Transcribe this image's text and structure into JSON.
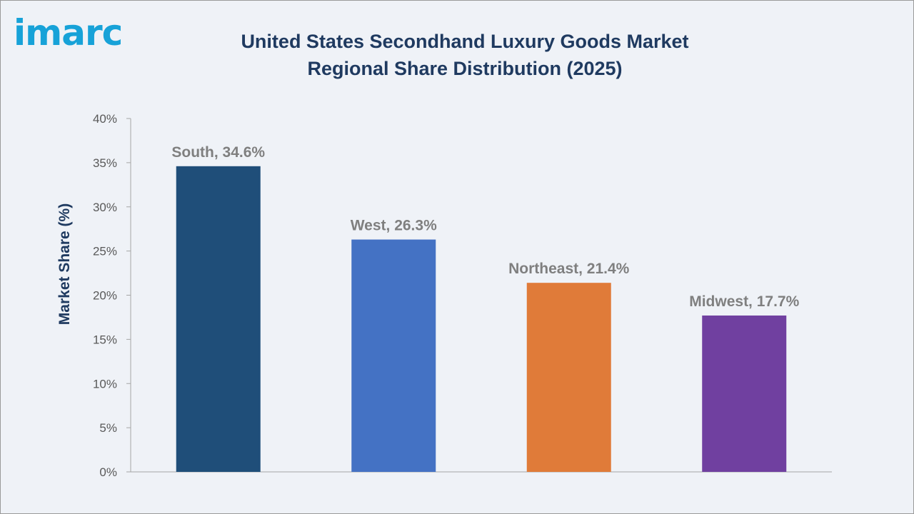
{
  "logo_text": "imarc",
  "chart_data": {
    "type": "bar",
    "title": "United States Secondhand Luxury Goods Market Regional Share Distribution (2025)",
    "xlabel": "",
    "ylabel": "Market Share (%)",
    "ylim": [
      0,
      40
    ],
    "yticks": [
      0,
      5,
      10,
      15,
      20,
      25,
      30,
      35,
      40
    ],
    "ytick_labels": [
      "0%",
      "5%",
      "10%",
      "15%",
      "20%",
      "25%",
      "30%",
      "35%",
      "40%"
    ],
    "categories": [
      "South",
      "West",
      "Northeast",
      "Midwest"
    ],
    "values": [
      34.6,
      26.3,
      21.4,
      17.7
    ],
    "data_labels": [
      "South, 34.6%",
      "West, 26.3%",
      "Northeast, 21.4%",
      "Midwest, 17.7%"
    ],
    "colors": [
      "#1f4e79",
      "#4472c4",
      "#e07b39",
      "#7040a0"
    ],
    "grid": false,
    "legend": "none"
  }
}
